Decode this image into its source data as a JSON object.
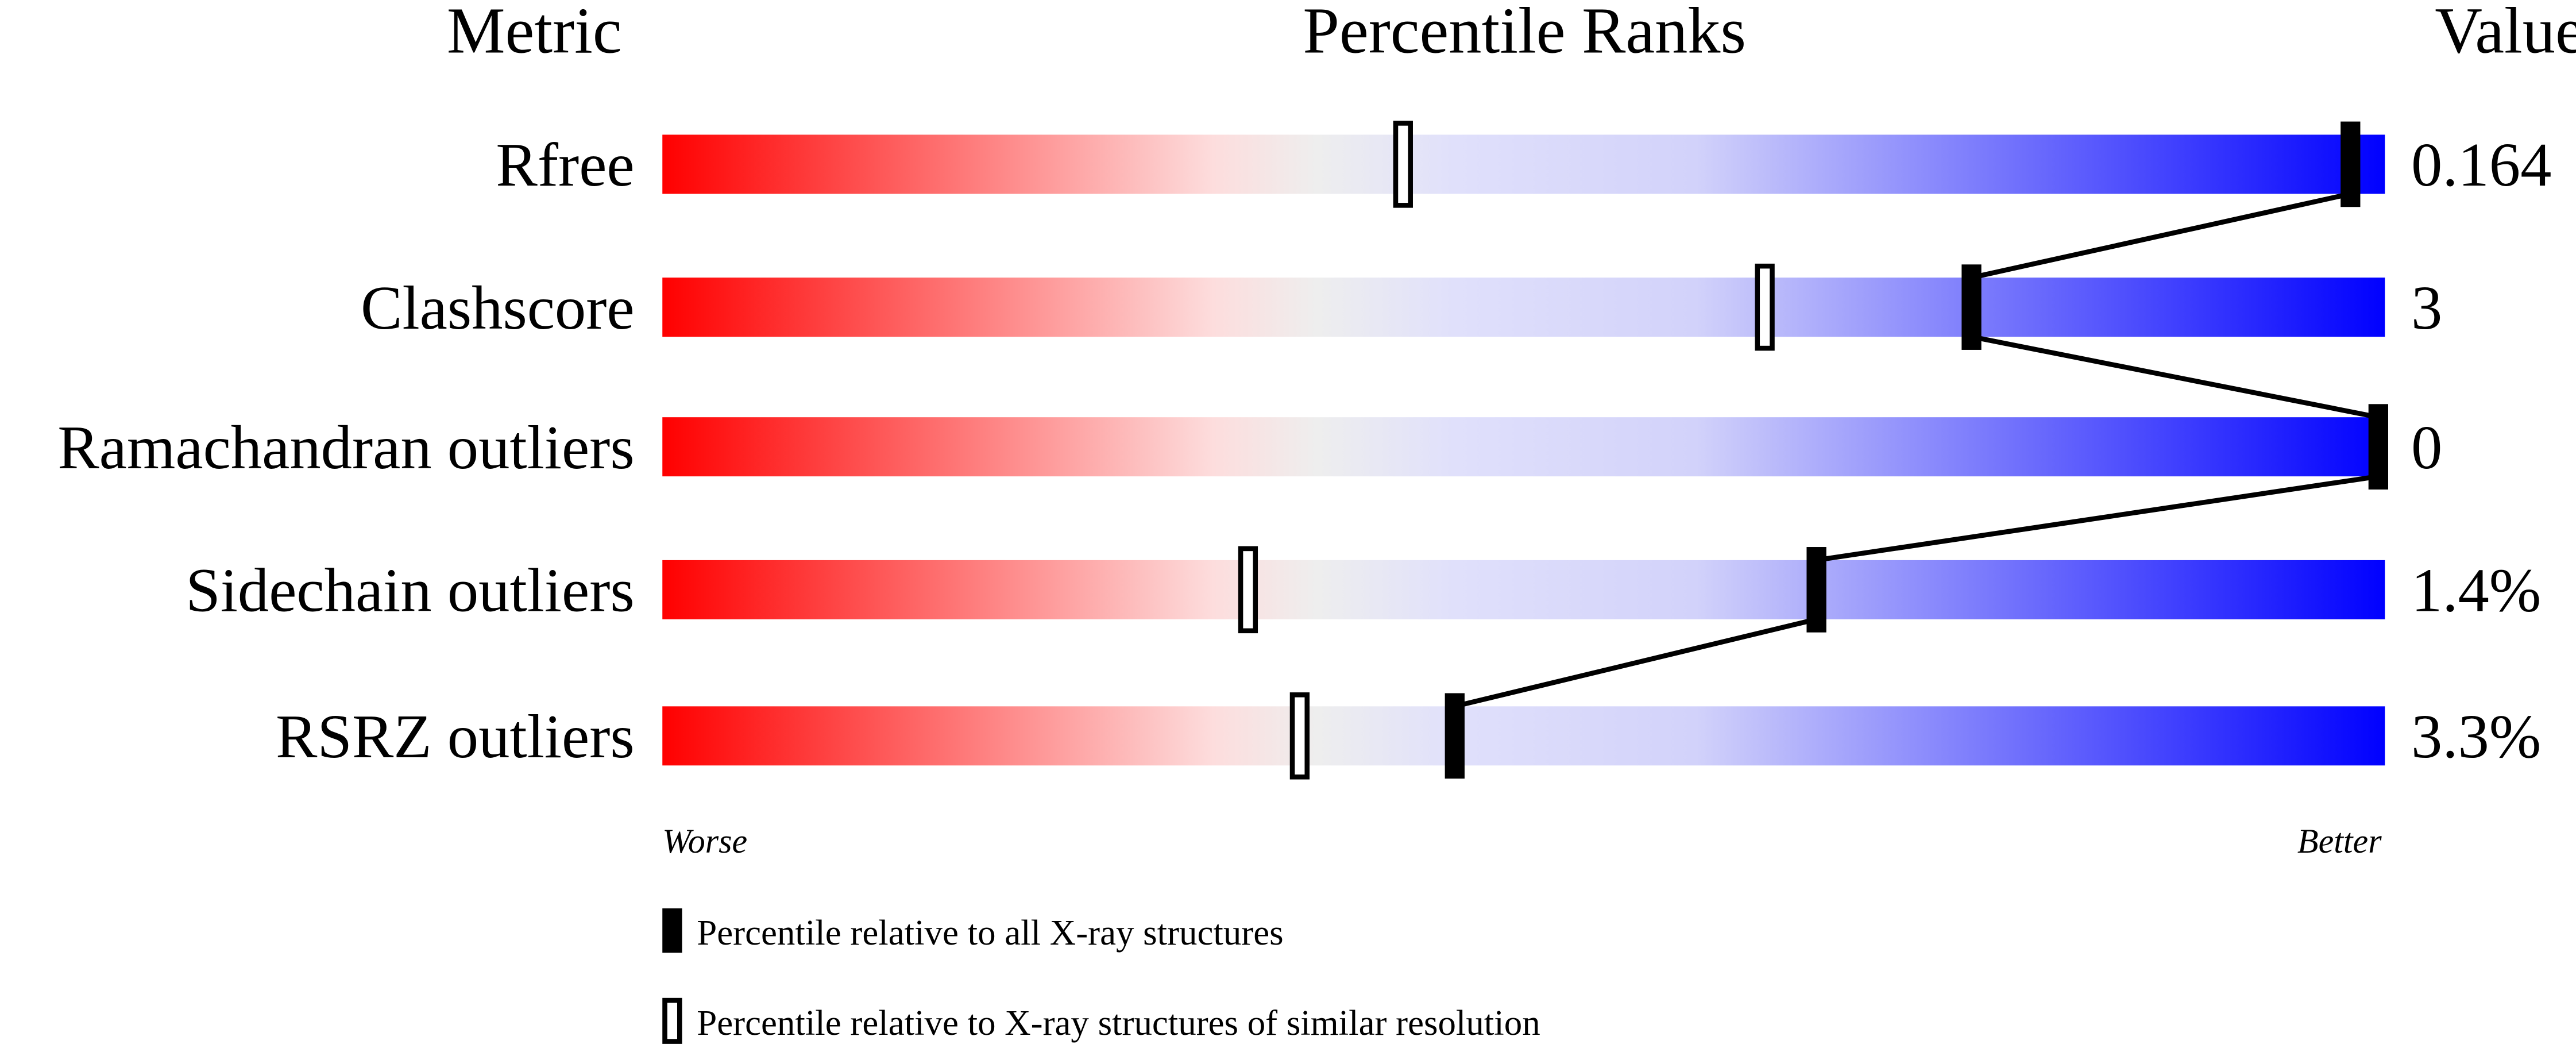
{
  "chart_data": {
    "type": "percentile-bar",
    "headers": {
      "metric": "Metric",
      "ranks": "Percentile Ranks",
      "value": "Value"
    },
    "axis": {
      "left": "Worse",
      "right": "Better",
      "range": [
        0,
        100
      ]
    },
    "gradient_colors": [
      "#ff0000",
      "#fddddd",
      "#eeeeee",
      "#dcdcfb",
      "#0000ff"
    ],
    "metrics": [
      {
        "name": "Rfree",
        "value": "0.164",
        "percentile_all": 98,
        "percentile_similar": 43
      },
      {
        "name": "Clashscore",
        "value": "3",
        "percentile_all": 76,
        "percentile_similar": 64
      },
      {
        "name": "Ramachandran outliers",
        "value": "0",
        "percentile_all": 100,
        "percentile_similar": null
      },
      {
        "name": "Sidechain outliers",
        "value": "1.4%",
        "percentile_all": 67,
        "percentile_similar": 34
      },
      {
        "name": "RSRZ outliers",
        "value": "3.3%",
        "percentile_all": 46,
        "percentile_similar": 37
      }
    ],
    "legend": [
      {
        "marker": "filled",
        "label": "Percentile relative to all X-ray structures"
      },
      {
        "marker": "open",
        "label": "Percentile relative to X-ray structures of similar resolution"
      }
    ]
  }
}
